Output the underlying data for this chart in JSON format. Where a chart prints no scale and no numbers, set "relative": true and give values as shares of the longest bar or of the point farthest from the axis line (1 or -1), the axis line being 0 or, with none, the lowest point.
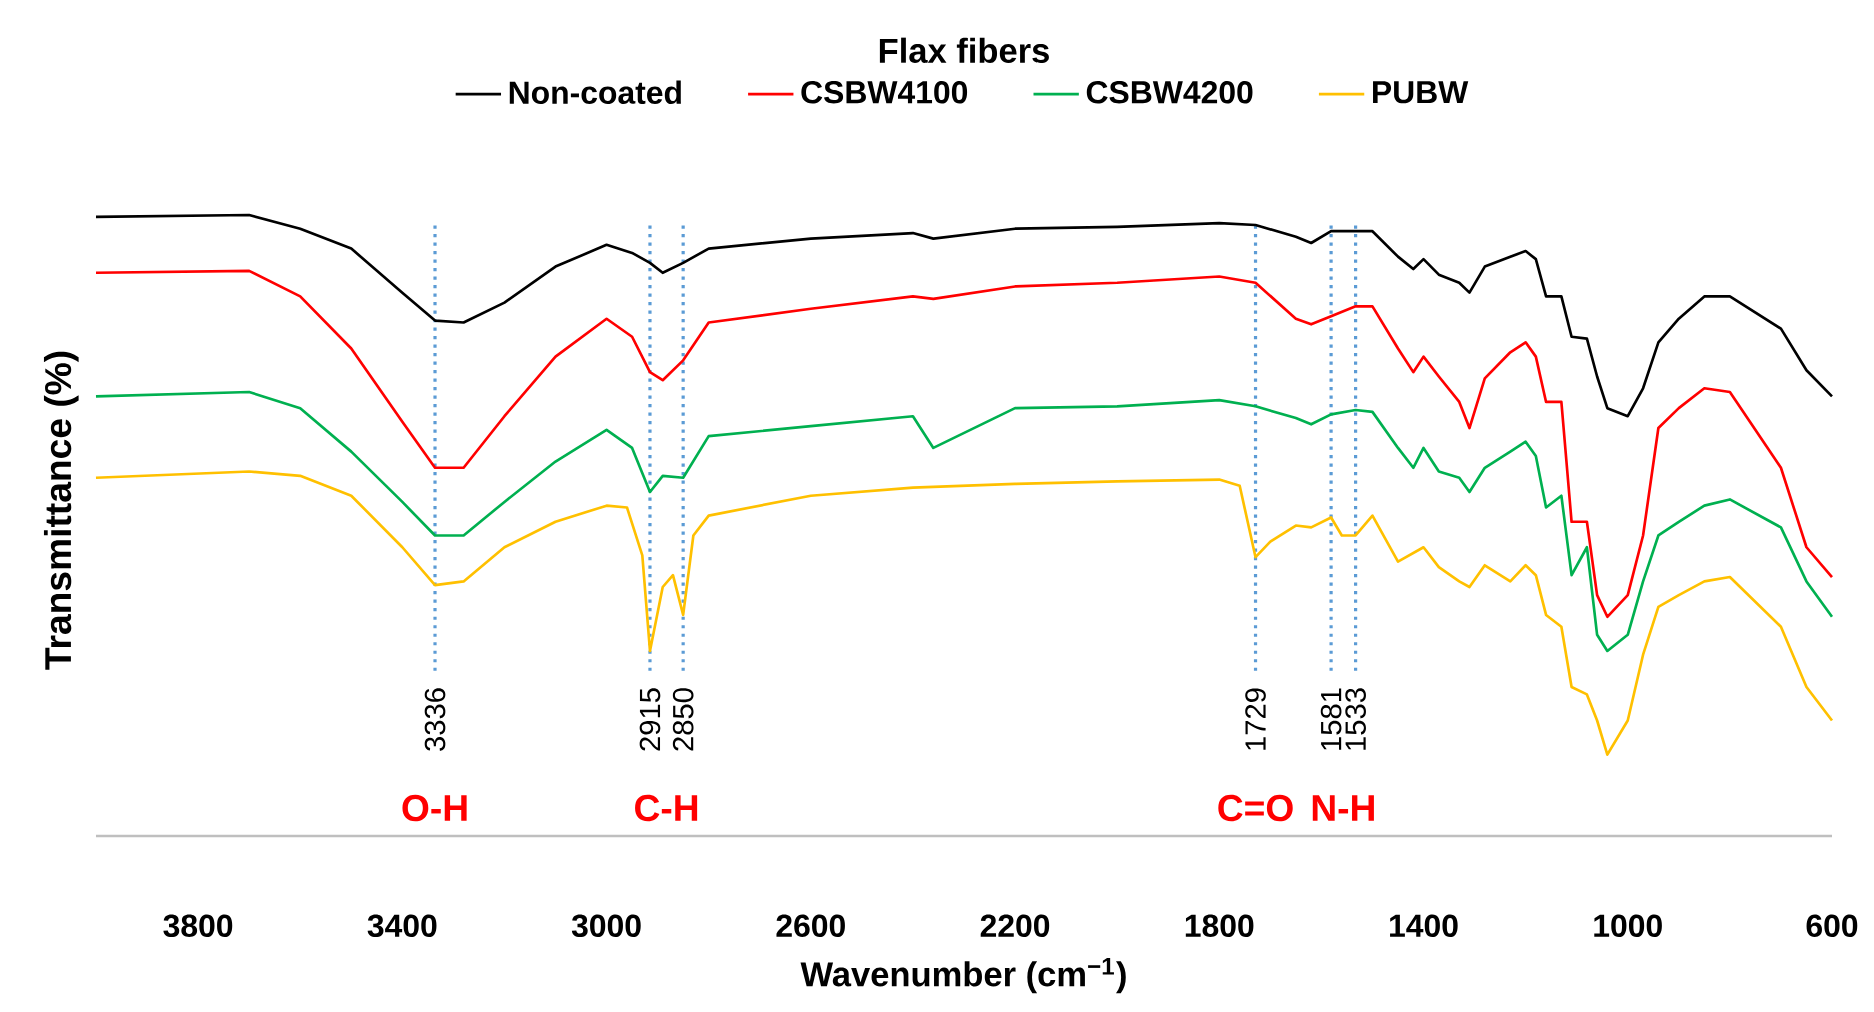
{
  "chart_data": {
    "type": "line",
    "title": "Flax fibers",
    "xlabel": "Wavenumber (cm$^{−1}$)",
    "ylabel": "Transmittance (%)",
    "relative": true,
    "xlim": [
      4000,
      600
    ],
    "xticks": [
      3800,
      3400,
      3000,
      2600,
      2200,
      1800,
      1400,
      1000,
      600
    ],
    "legend": "top",
    "marker": "none",
    "line_style": "solid",
    "grid": false,
    "tick_labels": "x",
    "x": [
      4000,
      3700,
      3600,
      3500,
      3400,
      3336,
      3280,
      3200,
      3100,
      3000,
      2950,
      2915,
      2890,
      2850,
      2800,
      2600,
      2400,
      2360,
      2200,
      2000,
      1800,
      1729,
      1650,
      1620,
      1581,
      1533,
      1500,
      1450,
      1420,
      1400,
      1370,
      1330,
      1310,
      1280,
      1230,
      1200,
      1180,
      1160,
      1130,
      1110,
      1080,
      1060,
      1040,
      1000,
      970,
      940,
      900,
      850,
      800,
      700,
      650,
      600
    ],
    "series": [
      {
        "name": "Non-coated",
        "color": "#000000",
        "values": [
          0.997,
          1,
          0.978,
          0.946,
          0.875,
          0.83,
          0.827,
          0.859,
          0.917,
          0.952,
          0.939,
          0.923,
          0.907,
          0.923,
          0.946,
          0.962,
          0.971,
          0.962,
          0.978,
          0.981,
          0.987,
          0.984,
          0.965,
          0.955,
          0.974,
          0.974,
          0.974,
          0.933,
          0.913,
          0.929,
          0.904,
          0.891,
          0.875,
          0.917,
          0.933,
          0.942,
          0.929,
          0.869,
          0.869,
          0.804,
          0.801,
          0.74,
          0.689,
          0.676,
          0.721,
          0.795,
          0.833,
          0.869,
          0.869,
          0.817,
          0.75,
          0.708
        ]
      },
      {
        "name": "CSBW4100",
        "color": "#ff0000",
        "values": [
          0.907,
          0.91,
          0.869,
          0.785,
          0.667,
          0.593,
          0.593,
          0.676,
          0.772,
          0.833,
          0.804,
          0.747,
          0.734,
          0.766,
          0.827,
          0.849,
          0.869,
          0.865,
          0.885,
          0.891,
          0.901,
          0.891,
          0.833,
          0.824,
          0.837,
          0.853,
          0.853,
          0.785,
          0.747,
          0.772,
          0.74,
          0.699,
          0.657,
          0.737,
          0.779,
          0.795,
          0.772,
          0.699,
          0.699,
          0.506,
          0.506,
          0.388,
          0.353,
          0.388,
          0.484,
          0.657,
          0.689,
          0.721,
          0.715,
          0.593,
          0.465,
          0.417
        ]
      },
      {
        "name": "CSBW4200",
        "color": "#00b050",
        "values": [
          0.708,
          0.715,
          0.689,
          0.619,
          0.538,
          0.484,
          0.484,
          0.538,
          0.603,
          0.654,
          0.625,
          0.554,
          0.58,
          0.577,
          0.644,
          0.66,
          0.676,
          0.625,
          0.689,
          0.692,
          0.702,
          0.692,
          0.673,
          0.663,
          0.679,
          0.686,
          0.683,
          0.625,
          0.593,
          0.625,
          0.587,
          0.577,
          0.554,
          0.593,
          0.619,
          0.635,
          0.612,
          0.529,
          0.548,
          0.42,
          0.465,
          0.324,
          0.298,
          0.324,
          0.41,
          0.484,
          0.506,
          0.532,
          0.542,
          0.497,
          0.41,
          0.353
        ]
      },
      {
        "name": "PUBW",
        "color": "#ffc000",
        "x": [
          4000,
          3700,
          3600,
          3500,
          3400,
          3336,
          3280,
          3200,
          3100,
          3000,
          2960,
          2930,
          2915,
          2890,
          2870,
          2850,
          2830,
          2800,
          2600,
          2400,
          2200,
          2000,
          1800,
          1760,
          1729,
          1700,
          1650,
          1620,
          1581,
          1560,
          1533,
          1500,
          1450,
          1400,
          1370,
          1330,
          1310,
          1280,
          1230,
          1200,
          1180,
          1160,
          1130,
          1110,
          1080,
          1060,
          1040,
          1000,
          970,
          940,
          900,
          850,
          800,
          700,
          650,
          600
        ],
        "values": [
          0.577,
          0.587,
          0.58,
          0.548,
          0.465,
          0.404,
          0.41,
          0.465,
          0.506,
          0.532,
          0.529,
          0.452,
          0.298,
          0.401,
          0.42,
          0.356,
          0.484,
          0.516,
          0.548,
          0.561,
          0.567,
          0.571,
          0.574,
          0.564,
          0.449,
          0.474,
          0.5,
          0.497,
          0.513,
          0.484,
          0.484,
          0.516,
          0.442,
          0.465,
          0.433,
          0.41,
          0.401,
          0.436,
          0.41,
          0.436,
          0.42,
          0.356,
          0.337,
          0.24,
          0.228,
          0.186,
          0.131,
          0.186,
          0.292,
          0.369,
          0.388,
          0.41,
          0.417,
          0.337,
          0.24,
          0.186
        ]
      }
    ],
    "ref_lines": [
      {
        "axis": "x",
        "value": 3336,
        "label": "3336",
        "color": "#5b9bd5",
        "line_style": "dotted"
      },
      {
        "axis": "x",
        "value": 2915,
        "label": "2915",
        "color": "#5b9bd5",
        "line_style": "dotted"
      },
      {
        "axis": "x",
        "value": 2850,
        "label": "2850",
        "color": "#5b9bd5",
        "line_style": "dotted"
      },
      {
        "axis": "x",
        "value": 1729,
        "label": "1729",
        "color": "#5b9bd5",
        "line_style": "dotted"
      },
      {
        "axis": "x",
        "value": 1581,
        "label": "1581",
        "color": "#5b9bd5",
        "line_style": "dotted"
      },
      {
        "axis": "x",
        "value": 1533,
        "label": "1533",
        "color": "#5b9bd5",
        "line_style": "dotted"
      }
    ],
    "annotations": [
      "O-H",
      "C-H",
      "C=O",
      "N-H"
    ]
  }
}
